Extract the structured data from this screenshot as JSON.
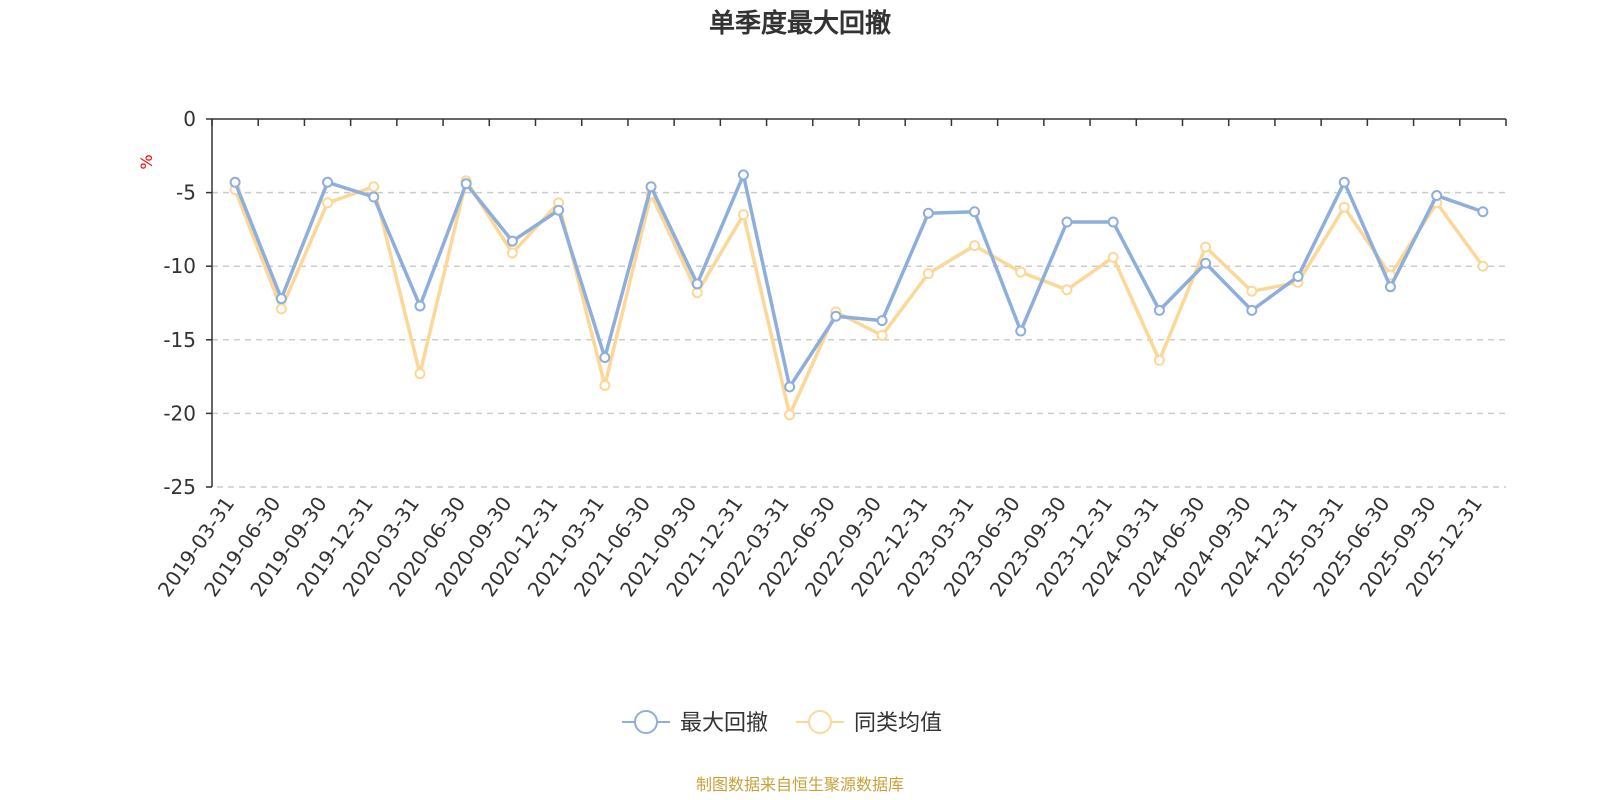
{
  "chart_data": {
    "type": "line",
    "title": "单季度最大回撤",
    "ylabel": "%",
    "ylim": [
      -25,
      0
    ],
    "yticks": [
      0,
      -5,
      -10,
      -15,
      -20,
      -25
    ],
    "grid": true,
    "legend_position": "bottom",
    "categories": [
      "2019-03-31",
      "2019-06-30",
      "2019-09-30",
      "2019-12-31",
      "2020-03-31",
      "2020-06-30",
      "2020-09-30",
      "2020-12-31",
      "2021-03-31",
      "2021-06-30",
      "2021-09-30",
      "2021-12-31",
      "2022-03-31",
      "2022-06-30",
      "2022-09-30",
      "2022-12-31",
      "2023-03-31",
      "2023-06-30",
      "2023-09-30",
      "2023-12-31",
      "2024-03-31",
      "2024-06-30",
      "2024-09-30",
      "2024-12-31",
      "2025-03-31",
      "2025-06-30",
      "2025-09-30",
      "2025-12-31"
    ],
    "series": [
      {
        "name": "最大回撤",
        "color": "#8eaedb",
        "values": [
          -4.3,
          -12.2,
          -4.3,
          -5.3,
          -12.7,
          -4.4,
          -8.3,
          -6.2,
          -16.2,
          -4.6,
          -11.2,
          -3.8,
          -18.2,
          -13.4,
          -13.7,
          -6.4,
          -6.3,
          -14.4,
          -7.0,
          -7.0,
          -13.0,
          -9.8,
          -13.0,
          -10.7,
          -4.3,
          -11.4,
          -5.2,
          -6.3
        ]
      },
      {
        "name": "同类均值",
        "color": "#fcd898",
        "values": [
          -4.8,
          -12.9,
          -5.7,
          -4.6,
          -17.3,
          -4.2,
          -9.1,
          -5.7,
          -18.1,
          -5.1,
          -11.8,
          -6.5,
          -20.1,
          -13.1,
          -14.7,
          -10.5,
          -8.6,
          -10.4,
          -11.6,
          -9.4,
          -16.4,
          -8.7,
          -11.7,
          -11.1,
          -6.0,
          -10.6,
          -5.7,
          -10.0
        ]
      }
    ],
    "axis_color": "#333333",
    "grid_color": "#cccccc",
    "unit_color": "#ff0000"
  },
  "source": {
    "text": "制图数据来自恒生聚源数据库",
    "color": "#c8a13a"
  }
}
